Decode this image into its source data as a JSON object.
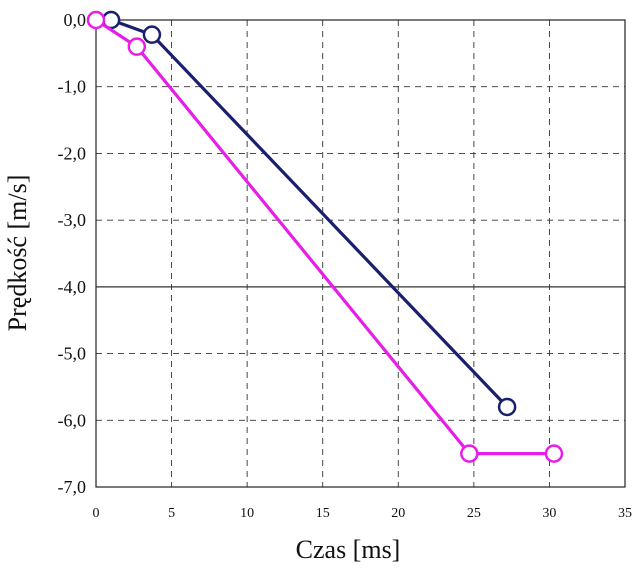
{
  "chart_data": {
    "type": "line",
    "title": "",
    "xlabel": "Czas [ms]",
    "ylabel": "Prędkość [m/s]",
    "xlim": [
      0,
      35
    ],
    "ylim": [
      -7,
      0
    ],
    "x_ticks": [
      "0",
      "5",
      "10",
      "15",
      "20",
      "25",
      "30",
      "35"
    ],
    "y_ticks": [
      "0,0",
      "-1,0",
      "-2,0",
      "-3,0",
      "-4,0",
      "-5,0",
      "-6,0",
      "-7,0"
    ],
    "grid": true,
    "series": [
      {
        "color": "#1a1f6e",
        "points": [
          [
            1.0,
            0.0
          ],
          [
            3.7,
            -0.22
          ],
          [
            27.2,
            -5.8
          ]
        ]
      },
      {
        "color": "#e61ee6",
        "points": [
          [
            0.0,
            0.0
          ],
          [
            2.7,
            -0.4
          ],
          [
            24.7,
            -6.5
          ],
          [
            30.3,
            -6.5
          ]
        ]
      }
    ]
  }
}
